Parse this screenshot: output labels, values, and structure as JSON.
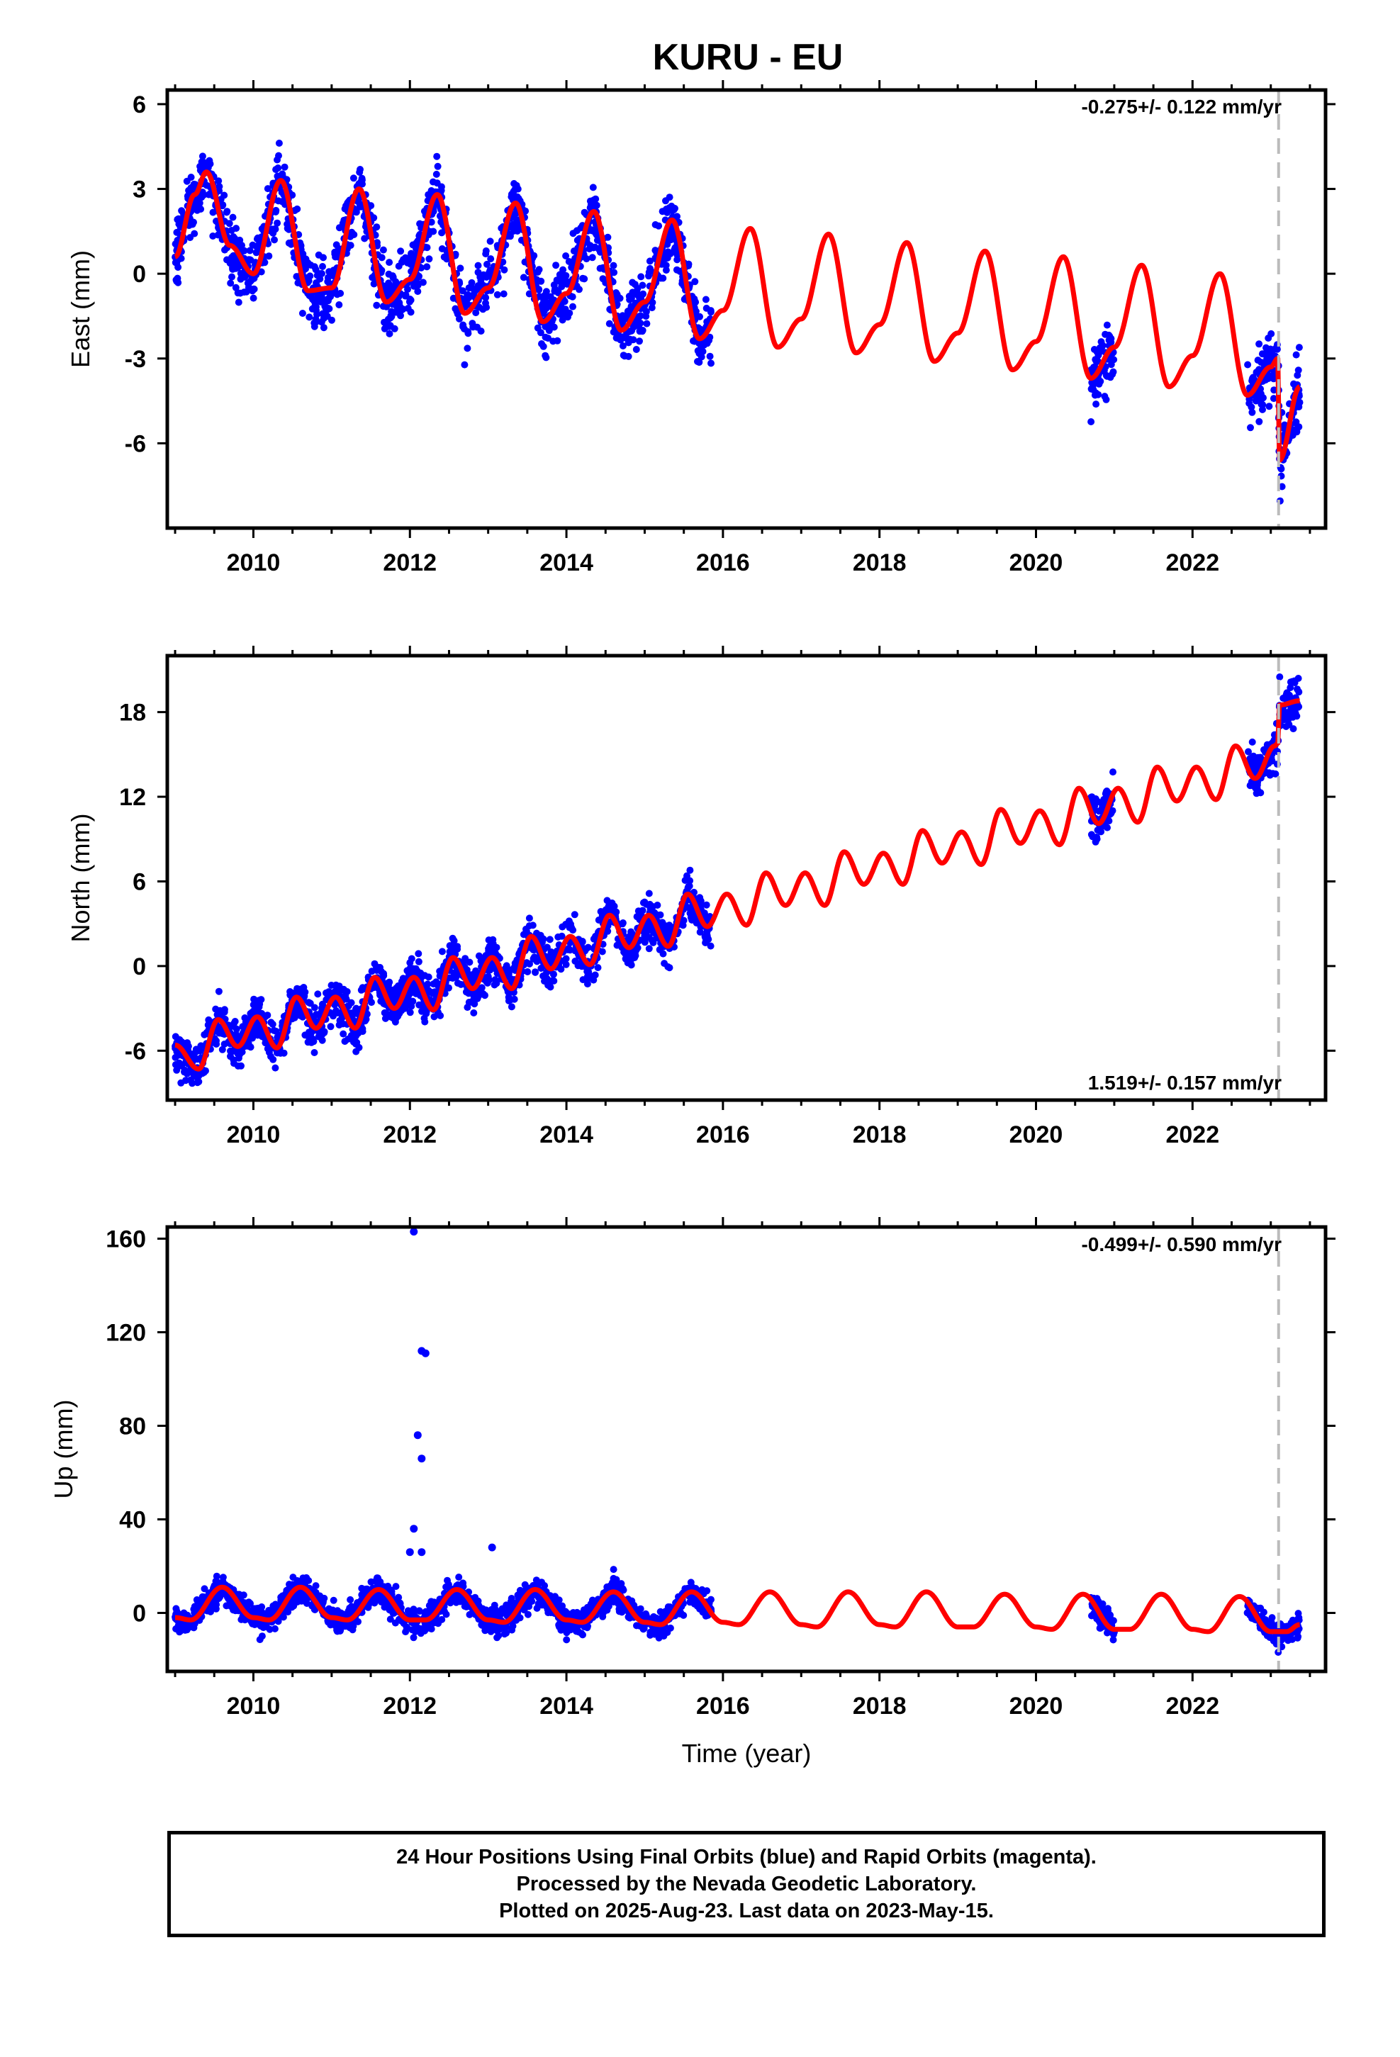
{
  "title": "KURU - EU",
  "footer": {
    "line1": "24 Hour Positions Using Final Orbits (blue) and Rapid Orbits (magenta).",
    "line2": "Processed by the Nevada Geodetic Laboratory.",
    "line3": "Plotted on 2025-Aug-23. Last data on 2023-May-15."
  },
  "colors": {
    "final_orbits": "#0000ff",
    "model": "#ff0000",
    "step_marker": "#bbbbbb",
    "frame": "#000000"
  },
  "chart_data": [
    {
      "type": "scatter",
      "panel": "east",
      "ylabel": "East (mm)",
      "xlabel": "",
      "xlim": [
        2008.9,
        2023.7
      ],
      "ylim": [
        -9,
        6.5
      ],
      "xticks": [
        2010,
        2012,
        2014,
        2016,
        2018,
        2020,
        2022
      ],
      "xtick_labels": [
        "2010",
        "2012",
        "2014",
        "2016",
        "2018",
        "2020",
        "2022"
      ],
      "yticks": [
        -6,
        -3,
        0,
        3,
        6
      ],
      "ytick_labels": [
        "-6",
        "-3",
        "0",
        "3",
        "6"
      ],
      "rate": "-0.275+/- 0.122 mm/yr",
      "step_epoch": 2023.1,
      "data_segments": [
        [
          2009.0,
          2015.85
        ],
        [
          2020.7,
          2021.0
        ],
        [
          2022.7,
          2023.37
        ]
      ],
      "model": {
        "x": [
          2009.0,
          2009.25,
          2009.4,
          2009.7,
          2010.0,
          2010.35,
          2010.7,
          2011.0,
          2011.35,
          2011.7,
          2012.0,
          2012.35,
          2012.7,
          2013.0,
          2013.35,
          2013.7,
          2014.0,
          2014.35,
          2014.7,
          2015.0,
          2015.35,
          2015.7,
          2016.0,
          2016.35,
          2016.7,
          2017.0,
          2017.35,
          2017.7,
          2018.0,
          2018.35,
          2018.7,
          2019.0,
          2019.35,
          2019.7,
          2020.0,
          2020.35,
          2020.7,
          2021.0,
          2021.35,
          2021.7,
          2022.0,
          2022.35,
          2022.7,
          2023.0,
          2023.09,
          2023.11,
          2023.37
        ],
        "y": [
          0.6,
          2.8,
          3.6,
          1.0,
          0.0,
          3.3,
          -0.6,
          -0.5,
          3.0,
          -1.0,
          -0.2,
          2.8,
          -1.4,
          -0.5,
          2.5,
          -1.7,
          -0.7,
          2.2,
          -2.0,
          -1.0,
          1.9,
          -2.3,
          -1.3,
          1.6,
          -2.6,
          -1.6,
          1.4,
          -2.8,
          -1.8,
          1.1,
          -3.1,
          -2.1,
          0.8,
          -3.4,
          -2.4,
          0.6,
          -3.7,
          -2.6,
          0.3,
          -4.0,
          -2.9,
          0.0,
          -4.3,
          -3.3,
          -3.0,
          -6.6,
          -4.0
        ]
      }
    },
    {
      "type": "scatter",
      "panel": "north",
      "ylabel": "North (mm)",
      "xlabel": "",
      "xlim": [
        2008.9,
        2023.7
      ],
      "ylim": [
        -9.5,
        22
      ],
      "xticks": [
        2010,
        2012,
        2014,
        2016,
        2018,
        2020,
        2022
      ],
      "xtick_labels": [
        "2010",
        "2012",
        "2014",
        "2016",
        "2018",
        "2020",
        "2022"
      ],
      "yticks": [
        -6,
        0,
        6,
        12,
        18
      ],
      "ytick_labels": [
        "-6",
        "0",
        "6",
        "12",
        "18"
      ],
      "rate": "1.519+/- 0.157 mm/yr",
      "step_epoch": 2023.1,
      "data_segments": [
        [
          2009.0,
          2015.85
        ],
        [
          2020.7,
          2021.0
        ],
        [
          2022.7,
          2023.37
        ]
      ],
      "model": {
        "x": [
          2009.0,
          2009.3,
          2009.55,
          2009.8,
          2010.05,
          2010.3,
          2010.55,
          2010.8,
          2011.05,
          2011.3,
          2011.55,
          2011.8,
          2012.05,
          2012.3,
          2012.55,
          2012.8,
          2013.05,
          2013.3,
          2013.55,
          2013.8,
          2014.05,
          2014.3,
          2014.55,
          2014.8,
          2015.05,
          2015.3,
          2015.55,
          2015.8,
          2016.05,
          2016.3,
          2016.55,
          2016.8,
          2017.05,
          2017.3,
          2017.55,
          2017.8,
          2018.05,
          2018.3,
          2018.55,
          2018.8,
          2019.05,
          2019.3,
          2019.55,
          2019.8,
          2020.05,
          2020.3,
          2020.55,
          2020.8,
          2021.05,
          2021.3,
          2021.55,
          2021.8,
          2022.05,
          2022.3,
          2022.55,
          2022.8,
          2023.05,
          2023.09,
          2023.11,
          2023.37
        ],
        "y": [
          -5.6,
          -7.3,
          -3.8,
          -5.7,
          -3.6,
          -5.8,
          -2.2,
          -4.4,
          -2.2,
          -4.4,
          -0.8,
          -3.0,
          -0.8,
          -3.1,
          0.6,
          -1.6,
          0.6,
          -1.6,
          2.1,
          -0.2,
          2.1,
          0.1,
          3.6,
          1.3,
          3.6,
          1.4,
          5.1,
          2.8,
          5.1,
          2.9,
          6.6,
          4.3,
          6.6,
          4.3,
          8.1,
          5.8,
          8.0,
          5.8,
          9.6,
          7.3,
          9.5,
          7.2,
          11.1,
          8.7,
          11.0,
          8.6,
          12.6,
          10.1,
          12.6,
          10.2,
          14.1,
          11.7,
          14.1,
          11.8,
          15.6,
          13.3,
          15.6,
          15.8,
          18.5,
          18.8
        ]
      }
    },
    {
      "type": "scatter",
      "panel": "up",
      "ylabel": "Up (mm)",
      "xlabel": "Time (year)",
      "xlim": [
        2008.9,
        2023.7
      ],
      "ylim": [
        -25,
        165
      ],
      "xticks": [
        2010,
        2012,
        2014,
        2016,
        2018,
        2020,
        2022
      ],
      "xtick_labels": [
        "2010",
        "2012",
        "2014",
        "2016",
        "2018",
        "2020",
        "2022"
      ],
      "yticks": [
        0,
        40,
        80,
        120,
        160
      ],
      "ytick_labels": [
        "0",
        "40",
        "80",
        "120",
        "160"
      ],
      "rate": "-0.499+/- 0.590 mm/yr",
      "step_epoch": 2023.1,
      "data_segments": [
        [
          2009.0,
          2015.85
        ],
        [
          2020.7,
          2021.0
        ],
        [
          2022.7,
          2023.37
        ]
      ],
      "outliers": [
        [
          2012.05,
          163
        ],
        [
          2012.15,
          112
        ],
        [
          2012.2,
          111
        ],
        [
          2012.1,
          76
        ],
        [
          2012.15,
          66
        ],
        [
          2012.05,
          36
        ],
        [
          2012.0,
          26
        ],
        [
          2012.15,
          26
        ],
        [
          2013.05,
          28
        ]
      ],
      "model": {
        "x": [
          2009.0,
          2009.2,
          2009.6,
          2010.0,
          2010.2,
          2010.6,
          2011.0,
          2011.2,
          2011.6,
          2012.0,
          2012.2,
          2012.6,
          2013.0,
          2013.2,
          2013.6,
          2014.0,
          2014.2,
          2014.6,
          2015.0,
          2015.2,
          2015.6,
          2016.0,
          2016.2,
          2016.6,
          2017.0,
          2017.2,
          2017.6,
          2018.0,
          2018.2,
          2018.6,
          2019.0,
          2019.2,
          2019.6,
          2020.0,
          2020.2,
          2020.6,
          2021.0,
          2021.2,
          2021.6,
          2022.0,
          2022.2,
          2022.6,
          2023.0,
          2023.2,
          2023.37
        ],
        "y": [
          -2,
          -3,
          11,
          -2,
          -3,
          11,
          -2,
          -3,
          10,
          -3,
          -3,
          10,
          -3,
          -4,
          10,
          -3,
          -4,
          9,
          -4,
          -5,
          9,
          -4,
          -5,
          9,
          -5,
          -6,
          9,
          -5,
          -6,
          9,
          -6,
          -6,
          8,
          -6,
          -7,
          8,
          -7,
          -7,
          8,
          -7,
          -8,
          7,
          -8,
          -8,
          -5
        ]
      }
    }
  ]
}
